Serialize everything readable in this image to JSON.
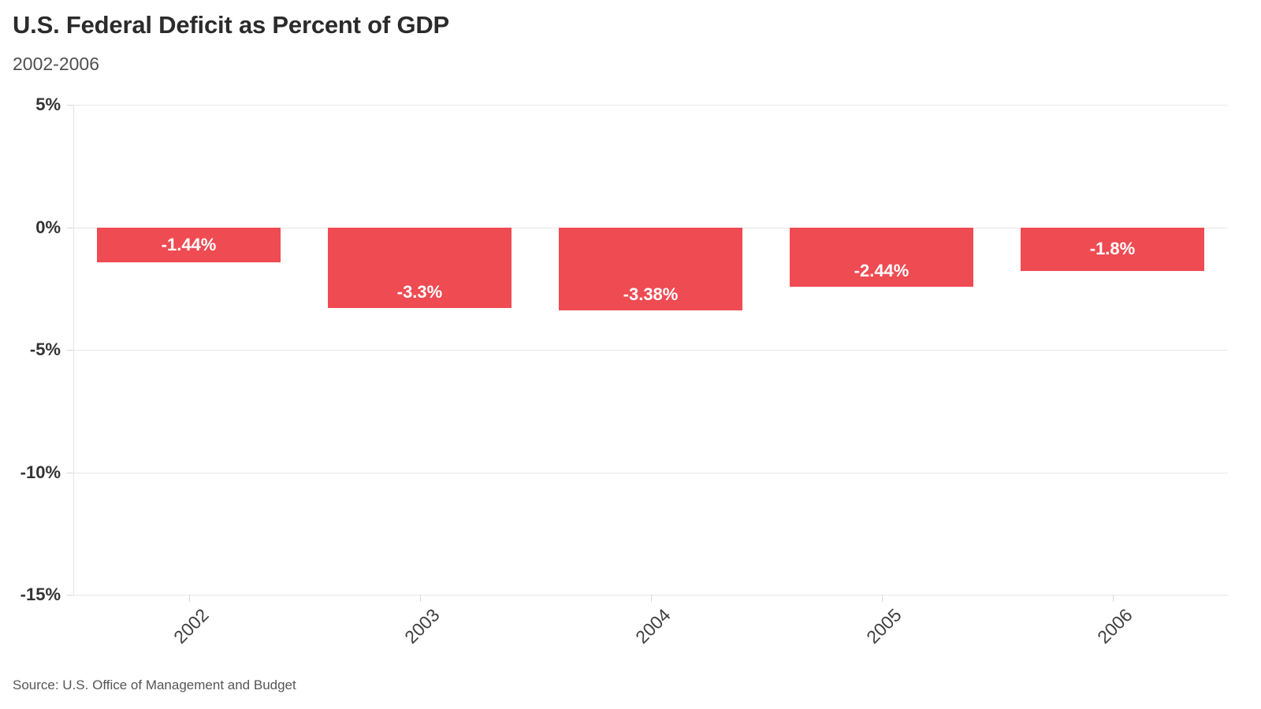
{
  "header": {
    "title": "U.S. Federal Deficit as Percent of GDP",
    "subtitle": "2002-2006"
  },
  "footer": {
    "source": "Source: U.S. Office of Management and Budget"
  },
  "chart_data": {
    "type": "bar",
    "title": "U.S. Federal Deficit as Percent of GDP",
    "subtitle": "2002-2006",
    "source": "Source: U.S. Office of Management and Budget",
    "categories": [
      "2002",
      "2003",
      "2004",
      "2005",
      "2006"
    ],
    "values": [
      -1.44,
      -3.3,
      -3.38,
      -2.44,
      -1.8
    ],
    "bar_labels": [
      "-1.44%",
      "-3.3%",
      "-3.38%",
      "-2.44%",
      "-1.8%"
    ],
    "xlabel": "",
    "ylabel": "",
    "ylim": [
      -15,
      5
    ],
    "yticks": [
      5,
      0,
      -5,
      -10,
      -15
    ],
    "ytick_labels": [
      "5%",
      "0%",
      "-5%",
      "-10%",
      "-15%"
    ],
    "grid": true,
    "legend_position": "none",
    "colors": {
      "bar": "#ef4b52",
      "bar_label": "#ffffff",
      "title": "#2b2b2b",
      "subtitle": "#4f4f4f",
      "axis_text": "#333333",
      "gridline": "#e8e8e8"
    }
  }
}
